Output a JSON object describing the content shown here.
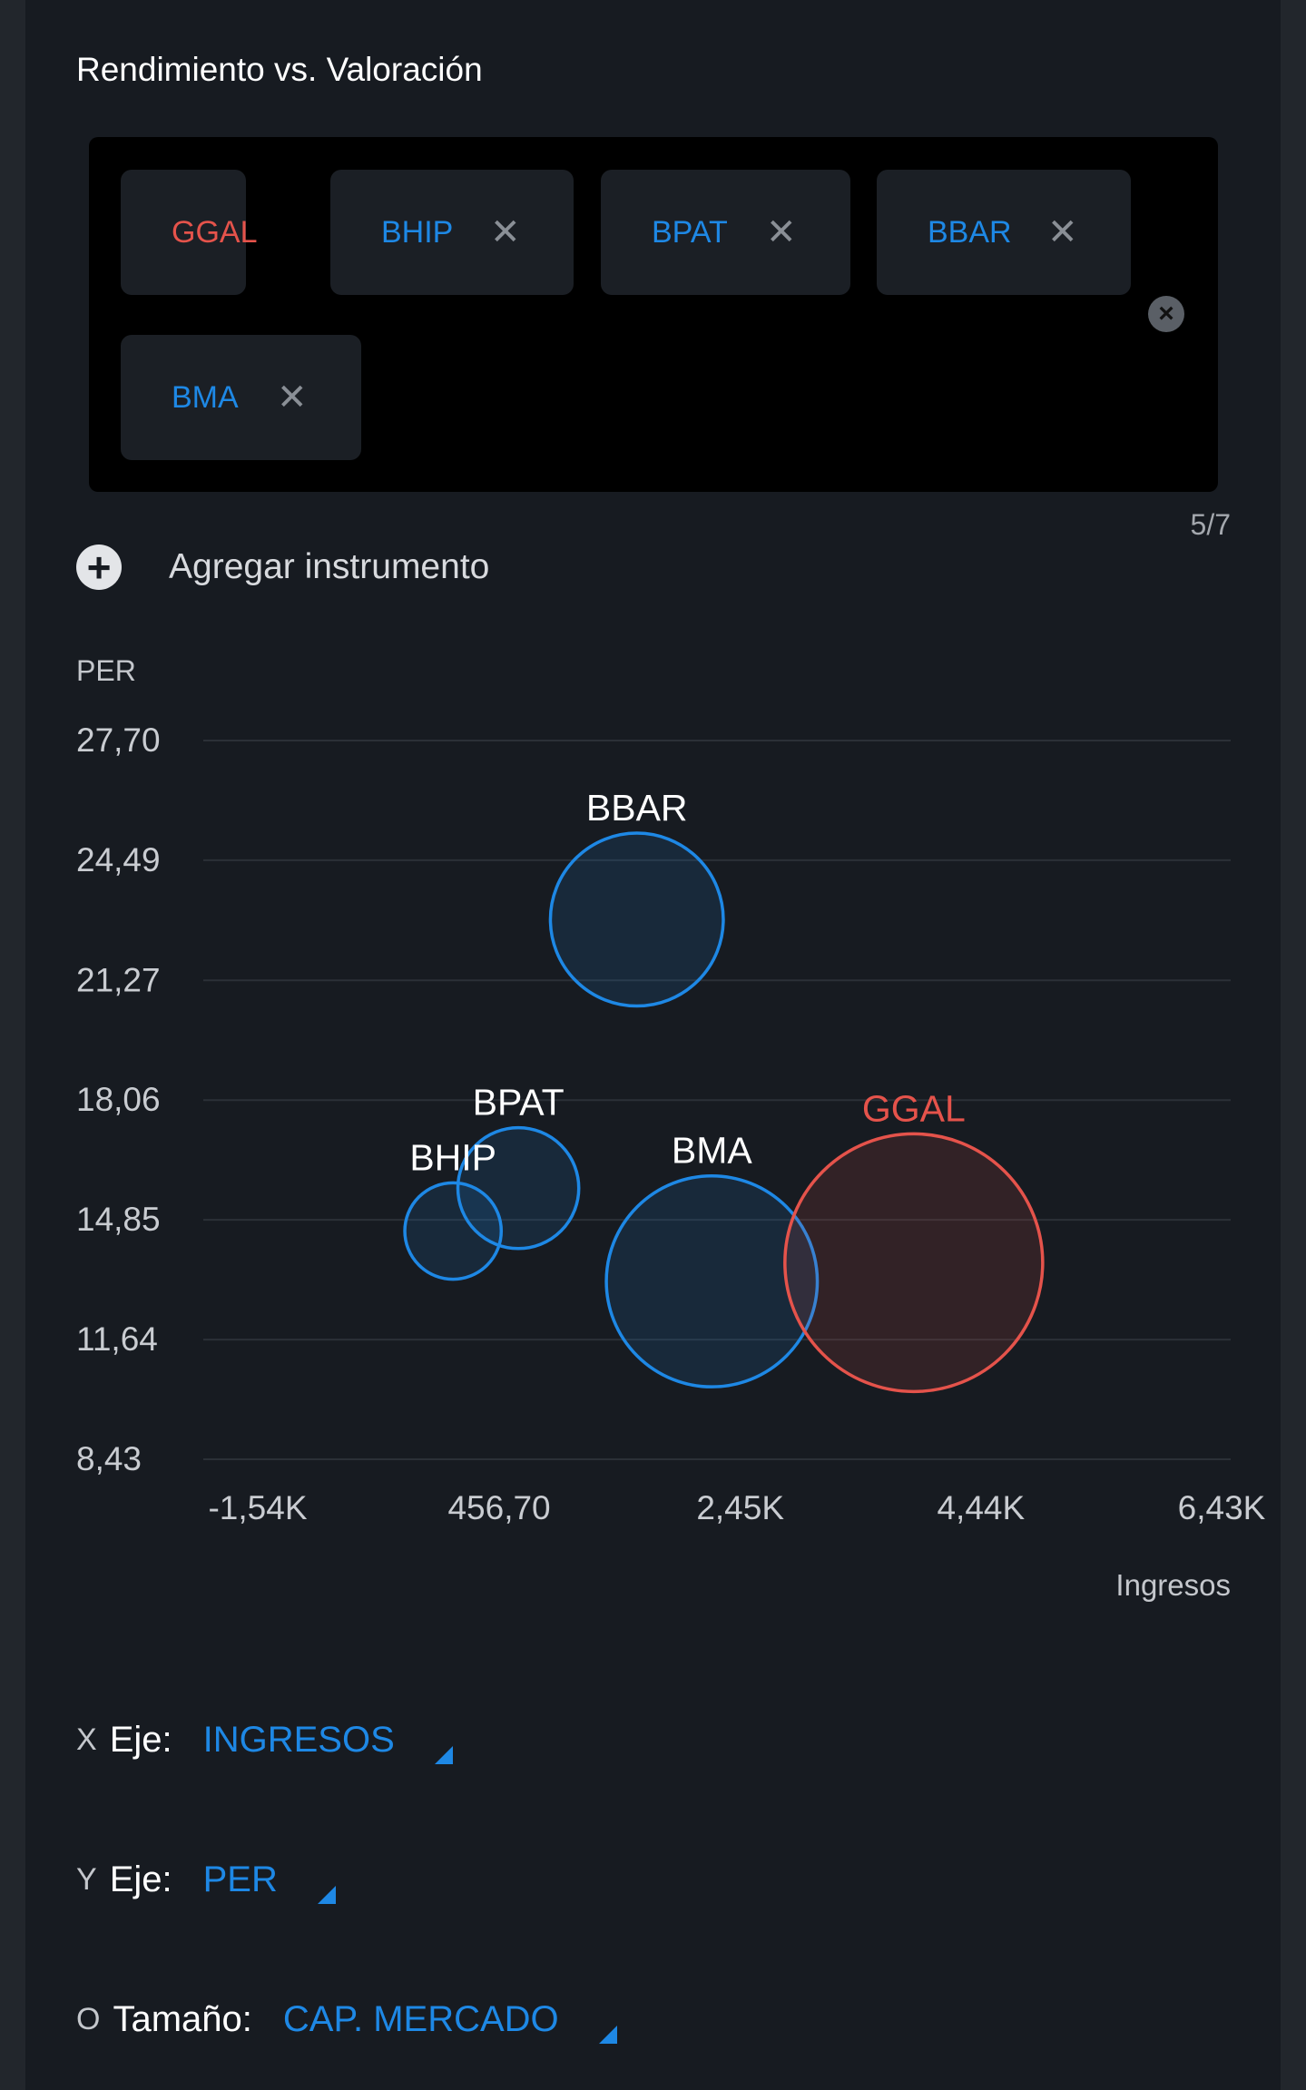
{
  "card": {
    "title": "Rendimiento vs. Valoración"
  },
  "chips": [
    {
      "label": "GGAL",
      "color": "#e5534b",
      "removable": false
    },
    {
      "label": "BHIP",
      "color": "#1e88e5",
      "removable": true
    },
    {
      "label": "BPAT",
      "color": "#1e88e5",
      "removable": true
    },
    {
      "label": "BBAR",
      "color": "#1e88e5",
      "removable": true
    },
    {
      "label": "BMA",
      "color": "#1e88e5",
      "removable": true
    }
  ],
  "chip_remove_icon": "close-icon",
  "clear_all_icon": "clear-circle-icon",
  "counter": "5/7",
  "add_instrument": {
    "label": "Agregar instrumento",
    "icon": "plus-circle-icon"
  },
  "chart_data": {
    "type": "scatter",
    "subtype": "bubble",
    "ylabel": "PER",
    "xlabel": "Ingresos",
    "yticks": [
      "27,70",
      "24,49",
      "21,27",
      "18,06",
      "14,85",
      "11,64",
      "8,43"
    ],
    "ytick_values": [
      27.7,
      24.49,
      21.27,
      18.06,
      14.85,
      11.64,
      8.43
    ],
    "xticks": [
      "-1,54K",
      "456,70",
      "2,45K",
      "4,44K",
      "6,43K"
    ],
    "xtick_values": [
      -1540,
      456.7,
      2450,
      4440,
      6430
    ],
    "xlim": [
      -1540,
      6430
    ],
    "ylim": [
      8.43,
      27.7
    ],
    "grid": true,
    "size_metric": "CAP. MERCADO",
    "points": [
      {
        "label": "BBAR",
        "x": 2000,
        "y": 22.9,
        "size": 0.45,
        "color": "#1e88e5"
      },
      {
        "label": "BPAT",
        "x": 1020,
        "y": 15.7,
        "size": 0.22,
        "color": "#1e88e5"
      },
      {
        "label": "BHIP",
        "x": 480,
        "y": 14.55,
        "size": 0.14,
        "color": "#1e88e5"
      },
      {
        "label": "BMA",
        "x": 2620,
        "y": 13.2,
        "size": 0.67,
        "color": "#1e88e5"
      },
      {
        "label": "GGAL",
        "x": 4290,
        "y": 13.7,
        "size": 1.0,
        "color": "#e5534b"
      }
    ]
  },
  "axis_selectors": [
    {
      "prefix": "X",
      "name": "Eje:",
      "value": "INGRESOS"
    },
    {
      "prefix": "Y",
      "name": "Eje:",
      "value": "PER"
    },
    {
      "prefix": "O",
      "name": "Tamaño:",
      "value": "CAP. MERCADO"
    }
  ],
  "colors": {
    "accent": "#1e88e5",
    "highlight": "#e5534b"
  }
}
